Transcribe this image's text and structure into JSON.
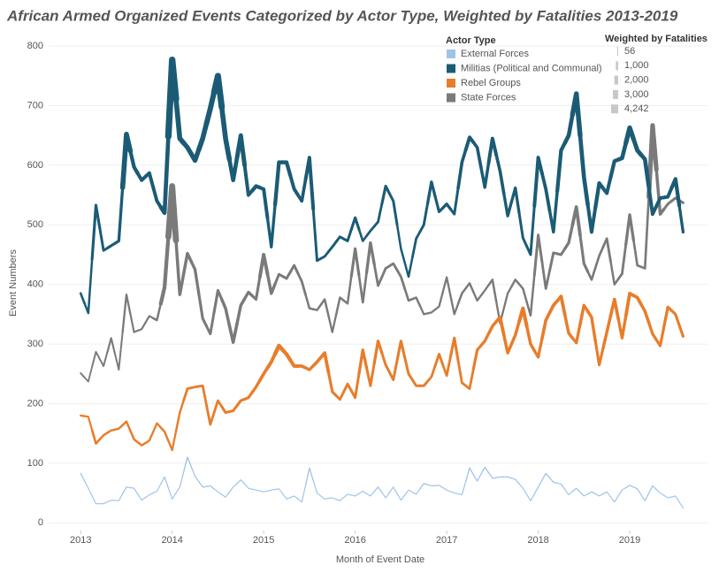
{
  "chart_data": {
    "type": "line",
    "title": "African Armed Organized Events Categorized by Actor Type, Weighted by Fatalities 2013-2019",
    "x_label": "Month of Event Date",
    "y_label": "Event Numbers",
    "legend_title": "Actor Type",
    "size_legend_title": "Weighted by Fatalities",
    "size_legend": [
      56,
      {
        "value": 1000,
        "label": "1,000"
      },
      {
        "value": 2000,
        "label": "2,000"
      },
      {
        "value": 3000,
        "label": "3,000"
      },
      {
        "value": 4242,
        "label": "4,242"
      }
    ],
    "x": [
      "2013-01",
      "2013-02",
      "2013-03",
      "2013-04",
      "2013-05",
      "2013-06",
      "2013-07",
      "2013-08",
      "2013-09",
      "2013-10",
      "2013-11",
      "2013-12",
      "2014-01",
      "2014-02",
      "2014-03",
      "2014-04",
      "2014-05",
      "2014-06",
      "2014-07",
      "2014-08",
      "2014-09",
      "2014-10",
      "2014-11",
      "2014-12",
      "2015-01",
      "2015-02",
      "2015-03",
      "2015-04",
      "2015-05",
      "2015-06",
      "2015-07",
      "2015-08",
      "2015-09",
      "2015-10",
      "2015-11",
      "2015-12",
      "2016-01",
      "2016-02",
      "2016-03",
      "2016-04",
      "2016-05",
      "2016-06",
      "2016-07",
      "2016-08",
      "2016-09",
      "2016-10",
      "2016-11",
      "2016-12",
      "2017-01",
      "2017-02",
      "2017-03",
      "2017-04",
      "2017-05",
      "2017-06",
      "2017-07",
      "2017-08",
      "2017-09",
      "2017-10",
      "2017-11",
      "2017-12",
      "2018-01",
      "2018-02",
      "2018-03",
      "2018-04",
      "2018-05",
      "2018-06",
      "2018-07",
      "2018-08",
      "2018-09",
      "2018-10",
      "2018-11",
      "2018-12",
      "2019-01",
      "2019-02",
      "2019-03",
      "2019-04",
      "2019-05",
      "2019-06",
      "2019-07",
      "2019-08"
    ],
    "xlim": [
      2012.65,
      2019.85
    ],
    "xticks": [
      2013,
      2014,
      2015,
      2016,
      2017,
      2018,
      2019
    ],
    "ylim": [
      -13,
      818
    ],
    "yticks": [
      0,
      100,
      200,
      300,
      400,
      500,
      600,
      700,
      800
    ],
    "grid": true,
    "series": [
      {
        "name": "External Forces",
        "color": "#a0c4e8",
        "values": [
          83,
          58,
          32,
          32,
          38,
          37,
          60,
          58,
          38,
          47,
          53,
          77,
          40,
          60,
          110,
          78,
          60,
          62,
          52,
          43,
          60,
          72,
          58,
          55,
          52,
          55,
          57,
          40,
          45,
          35,
          92,
          50,
          40,
          42,
          37,
          48,
          45,
          53,
          45,
          60,
          42,
          60,
          38,
          55,
          48,
          66,
          62,
          63,
          55,
          50,
          47,
          92,
          70,
          93,
          75,
          77,
          77,
          73,
          58,
          37,
          60,
          83,
          68,
          65,
          47,
          58,
          45,
          52,
          45,
          52,
          35,
          55,
          63,
          57,
          37,
          62,
          50,
          42,
          45,
          25
        ],
        "sizes": [
          150,
          100,
          100,
          100,
          100,
          100,
          150,
          150,
          100,
          100,
          100,
          150,
          100,
          150,
          250,
          150,
          150,
          150,
          100,
          100,
          150,
          150,
          100,
          100,
          100,
          100,
          100,
          100,
          100,
          100,
          200,
          100,
          100,
          100,
          100,
          100,
          100,
          100,
          100,
          150,
          100,
          150,
          100,
          100,
          100,
          150,
          150,
          150,
          100,
          100,
          100,
          200,
          150,
          200,
          150,
          150,
          150,
          150,
          100,
          100,
          150,
          200,
          150,
          150,
          100,
          150,
          100,
          100,
          100,
          100,
          100,
          100,
          150,
          150,
          100,
          150,
          100,
          100,
          100,
          100
        ]
      },
      {
        "name": "Militias (Political and Communal)",
        "color": "#1b5b75",
        "values": [
          385,
          352,
          533,
          457,
          465,
          473,
          652,
          597,
          575,
          587,
          540,
          520,
          777,
          645,
          630,
          608,
          645,
          695,
          750,
          645,
          575,
          650,
          550,
          565,
          560,
          463,
          605,
          605,
          560,
          540,
          613,
          440,
          447,
          463,
          480,
          473,
          512,
          473,
          490,
          505,
          565,
          540,
          460,
          413,
          477,
          500,
          572,
          522,
          535,
          518,
          605,
          647,
          630,
          563,
          645,
          590,
          515,
          562,
          478,
          450,
          613,
          560,
          488,
          625,
          650,
          720,
          580,
          488,
          570,
          553,
          607,
          612,
          663,
          625,
          610,
          518,
          545,
          547,
          577,
          488
        ],
        "sizes": [
          1000,
          900,
          1300,
          1200,
          1300,
          1400,
          2800,
          2000,
          1800,
          1800,
          1800,
          2200,
          3800,
          2800,
          2600,
          2600,
          2800,
          3000,
          3600,
          2800,
          2200,
          2400,
          1800,
          2000,
          1800,
          1400,
          2000,
          2000,
          1800,
          1600,
          1800,
          1200,
          1100,
          1200,
          1200,
          1200,
          1300,
          1000,
          1100,
          1100,
          1300,
          1200,
          900,
          900,
          1100,
          1200,
          1400,
          1300,
          1400,
          1200,
          1600,
          1800,
          1600,
          1500,
          1800,
          1600,
          1400,
          1400,
          1200,
          1200,
          1800,
          1700,
          1500,
          2000,
          2200,
          2700,
          2200,
          1800,
          2000,
          1800,
          2000,
          2200,
          2600,
          2400,
          2200,
          1800,
          1800,
          1800,
          2000,
          1400
        ]
      },
      {
        "name": "Rebel Groups",
        "color": "#e87d2b",
        "values": [
          180,
          178,
          133,
          147,
          155,
          158,
          170,
          140,
          130,
          138,
          167,
          153,
          122,
          185,
          225,
          228,
          230,
          165,
          205,
          185,
          188,
          205,
          210,
          228,
          250,
          270,
          297,
          283,
          263,
          263,
          257,
          270,
          285,
          220,
          207,
          233,
          210,
          290,
          230,
          305,
          265,
          240,
          305,
          250,
          230,
          230,
          245,
          283,
          247,
          310,
          235,
          225,
          290,
          305,
          330,
          345,
          285,
          315,
          360,
          300,
          278,
          340,
          365,
          380,
          318,
          302,
          365,
          345,
          265,
          320,
          375,
          310,
          385,
          378,
          355,
          317,
          297,
          362,
          350,
          313
        ],
        "sizes": [
          800,
          700,
          1000,
          900,
          900,
          900,
          900,
          900,
          900,
          800,
          800,
          900,
          800,
          900,
          1100,
          1100,
          1100,
          1100,
          1100,
          1200,
          1200,
          1300,
          1300,
          1400,
          1600,
          1800,
          2200,
          2000,
          1800,
          1600,
          1500,
          1600,
          1700,
          1300,
          1200,
          1200,
          1200,
          1400,
          1200,
          1400,
          1200,
          1200,
          1300,
          1200,
          1200,
          1200,
          1100,
          1200,
          1100,
          1300,
          1100,
          1100,
          1300,
          1400,
          1500,
          1700,
          1500,
          1500,
          1900,
          1500,
          1400,
          1600,
          1700,
          1700,
          1500,
          1400,
          1500,
          1500,
          1300,
          1500,
          1600,
          1400,
          1700,
          1700,
          1500,
          1400,
          1300,
          1400,
          1300,
          1300
        ]
      },
      {
        "name": "State Forces",
        "color": "#7a7a7a",
        "values": [
          251,
          237,
          287,
          263,
          310,
          257,
          383,
          320,
          325,
          347,
          340,
          395,
          565,
          383,
          452,
          425,
          343,
          317,
          390,
          360,
          303,
          365,
          387,
          375,
          450,
          385,
          417,
          410,
          432,
          405,
          360,
          357,
          375,
          320,
          378,
          368,
          460,
          370,
          470,
          398,
          427,
          435,
          413,
          373,
          378,
          350,
          353,
          363,
          412,
          350,
          385,
          402,
          373,
          390,
          408,
          335,
          385,
          408,
          393,
          348,
          483,
          393,
          453,
          450,
          470,
          530,
          435,
          408,
          448,
          477,
          400,
          418,
          517,
          432,
          427,
          667,
          518,
          535,
          545,
          537
        ],
        "sizes": [
          600,
          500,
          600,
          600,
          700,
          600,
          800,
          700,
          700,
          700,
          900,
          2000,
          3500,
          1500,
          1500,
          1400,
          1300,
          1200,
          1300,
          1500,
          1600,
          1500,
          1400,
          1300,
          1800,
          1500,
          1200,
          1200,
          1200,
          1100,
          900,
          900,
          900,
          800,
          900,
          900,
          1300,
          1000,
          1400,
          1100,
          1100,
          1100,
          1100,
          1000,
          900,
          800,
          800,
          800,
          800,
          800,
          900,
          900,
          800,
          800,
          900,
          800,
          800,
          900,
          900,
          900,
          1200,
          1100,
          1200,
          1200,
          1400,
          1700,
          1300,
          1000,
          1000,
          1100,
          900,
          1100,
          1400,
          1000,
          1000,
          2500,
          1500,
          1200,
          1200,
          1200
        ]
      }
    ]
  }
}
